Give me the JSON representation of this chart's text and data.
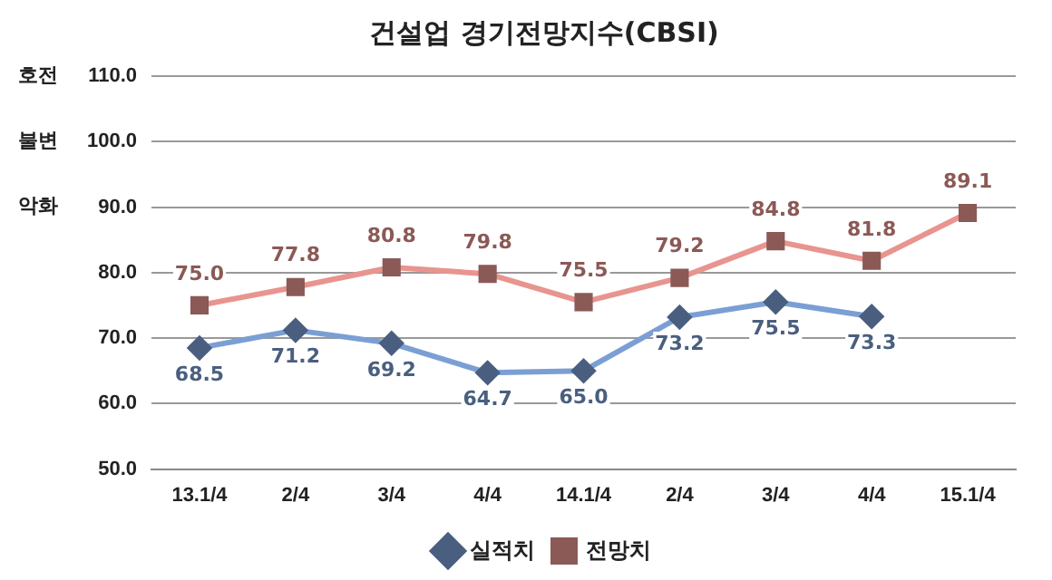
{
  "chart_data": {
    "type": "line",
    "title": "건설업 경기전망지수(CBSI)",
    "categories": [
      "13.1/4",
      "2/4",
      "3/4",
      "4/4",
      "14.1/4",
      "2/4",
      "3/4",
      "4/4",
      "15.1/4"
    ],
    "series": [
      {
        "name": "실적치",
        "color": "#7b9fd4",
        "marker": "diamond",
        "values": [
          68.5,
          71.2,
          69.2,
          64.7,
          65.0,
          73.2,
          75.5,
          73.3,
          null
        ],
        "value_labels": [
          "68.5",
          "71.2",
          "69.2",
          "64.7",
          "65.0",
          "73.2",
          "75.5",
          "73.3",
          null
        ]
      },
      {
        "name": "전망치",
        "color": "#e8948f",
        "marker": "square",
        "values": [
          75.0,
          77.8,
          80.8,
          79.8,
          75.5,
          79.2,
          84.8,
          81.8,
          89.1
        ],
        "value_labels": [
          "75.0",
          "77.8",
          "80.8",
          "79.8",
          "75.5",
          "79.2",
          "84.8",
          "81.8",
          "89.1"
        ]
      }
    ],
    "ylim": [
      50,
      110
    ],
    "yticks": [
      {
        "value": 50,
        "label": "50.0"
      },
      {
        "value": 60,
        "label": "60.0"
      },
      {
        "value": 70,
        "label": "70.0"
      },
      {
        "value": 80,
        "label": "80.0"
      },
      {
        "value": 90,
        "label": "90.0"
      },
      {
        "value": 100,
        "label": "100.0"
      },
      {
        "value": 110,
        "label": "110.0"
      }
    ],
    "annotations": [
      "호전",
      "불변",
      "악화"
    ],
    "grid": "y",
    "legend": "bottom"
  }
}
